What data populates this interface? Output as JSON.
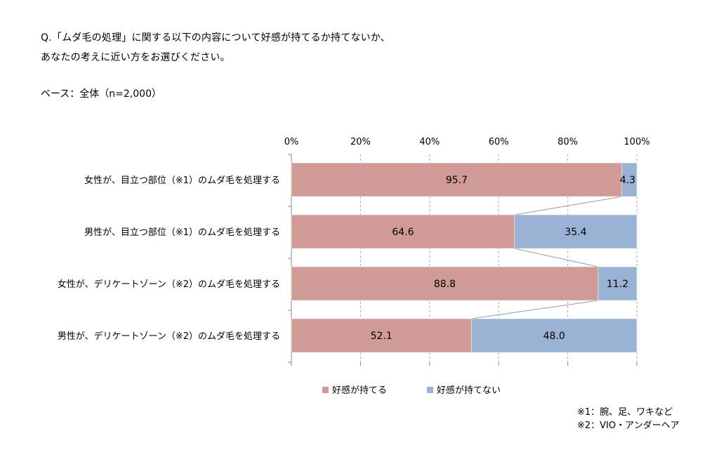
{
  "question": {
    "line1": "Q.「ムダ毛の処理」に関する以下の内容について好感が持てるか持てないか、",
    "line2": "あなたの考えに近い方をお選びください。"
  },
  "base": "ベース：全体（n=2,000）",
  "notes": [
    "※1：腕、足、ワキなど",
    "※2：VIO・アンダーヘア"
  ],
  "colors": {
    "positive": "#d09a96",
    "negative": "#9ab2d4",
    "axis": "#888888",
    "connector": "#999999"
  },
  "chart_data": {
    "type": "bar",
    "orientation": "horizontal",
    "stacked": true,
    "percent": true,
    "xlim": [
      0,
      100
    ],
    "ticks": [
      "0%",
      "20%",
      "40%",
      "60%",
      "80%",
      "100%"
    ],
    "tick_values": [
      0,
      20,
      40,
      60,
      80,
      100
    ],
    "grid": true,
    "legend_position": "bottom",
    "categories": [
      "女性が、目立つ部位（※1）のムダ毛を処理する",
      "男性が、目立つ部位（※1）のムダ毛を処理する",
      "女性が、デリケートゾーン（※2）のムダ毛を処理する",
      "男性が、デリケートゾーン（※2）のムダ毛を処理する"
    ],
    "series": [
      {
        "name": "好感が持てる",
        "values": [
          95.7,
          64.6,
          88.8,
          52.1
        ],
        "labels": [
          "95.7",
          "64.6",
          "88.8",
          "52.1"
        ]
      },
      {
        "name": "好感が持てない",
        "values": [
          4.3,
          35.4,
          11.2,
          48.0
        ],
        "labels": [
          "4.3",
          "35.4",
          "11.2",
          "48.0"
        ]
      }
    ]
  }
}
